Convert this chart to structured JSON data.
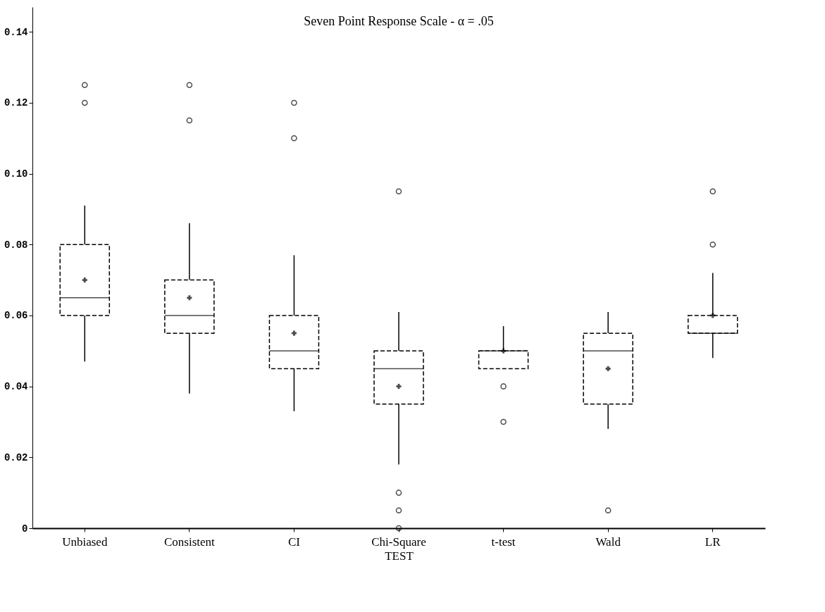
{
  "chart_data": {
    "type": "box",
    "title": "Seven Point Response Scale - α = .05",
    "xlabel": "TEST",
    "categories": [
      "Unbiased",
      "Consistent",
      "CI",
      "Chi-Square",
      "t-test",
      "Wald",
      "LR"
    ],
    "boxes": [
      {
        "low": 0.047,
        "q1": 0.06,
        "median": 0.065,
        "q3": 0.08,
        "high": 0.091,
        "mean": 0.07,
        "outliers": [
          0.125,
          0.12
        ]
      },
      {
        "low": 0.038,
        "q1": 0.055,
        "median": 0.06,
        "q3": 0.07,
        "high": 0.086,
        "mean": 0.065,
        "outliers": [
          0.125,
          0.115
        ]
      },
      {
        "low": 0.033,
        "q1": 0.045,
        "median": 0.05,
        "q3": 0.06,
        "high": 0.077,
        "mean": 0.055,
        "outliers": [
          0.12,
          0.11
        ]
      },
      {
        "low": 0.018,
        "q1": 0.035,
        "median": 0.045,
        "q3": 0.05,
        "high": 0.061,
        "mean": 0.04,
        "outliers": [
          0.095,
          0.01,
          0.005,
          0
        ]
      },
      {
        "low": 0.045,
        "q1": 0.045,
        "median": 0.05,
        "q3": 0.05,
        "high": 0.057,
        "mean": 0.05,
        "outliers": [
          0.04,
          0.03
        ]
      },
      {
        "low": 0.028,
        "q1": 0.035,
        "median": 0.05,
        "q3": 0.055,
        "high": 0.061,
        "mean": 0.045,
        "outliers": [
          0.005
        ]
      },
      {
        "low": 0.048,
        "q1": 0.055,
        "median": 0.055,
        "q3": 0.06,
        "high": 0.072,
        "mean": 0.06,
        "outliers": [
          0.095,
          0.08
        ]
      }
    ],
    "ylim": [
      0,
      0.147
    ],
    "yticks": [
      0,
      0.02,
      0.04,
      0.06,
      0.08,
      {
        "value": 0.1,
        "label": "0.10"
      },
      0.12,
      0.14
    ]
  }
}
